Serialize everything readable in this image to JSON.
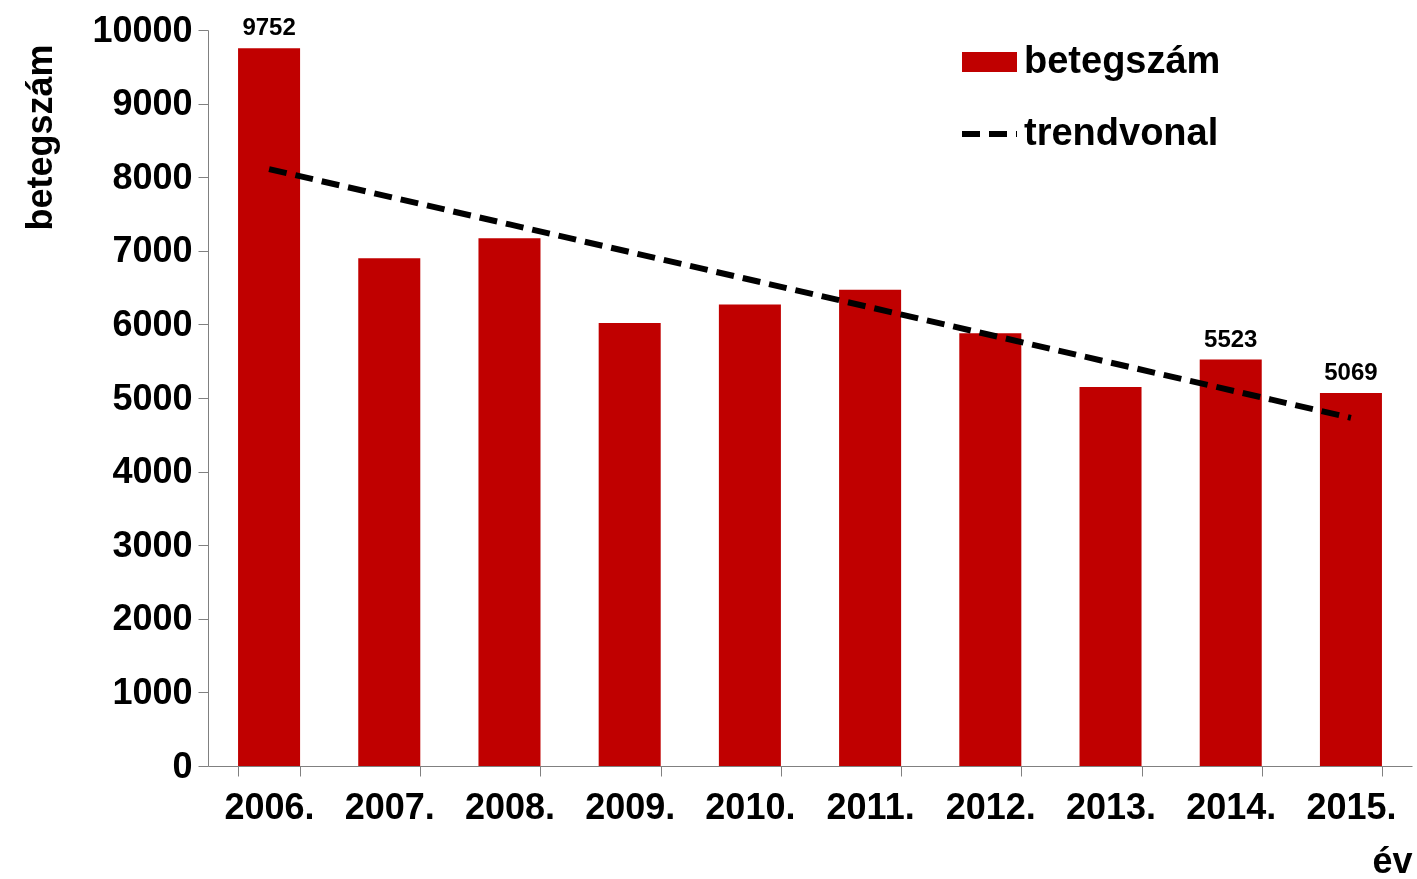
{
  "chart_data": {
    "type": "bar",
    "categories": [
      "2006.",
      "2007.",
      "2008.",
      "2009.",
      "2010.",
      "2011.",
      "2012.",
      "2013.",
      "2014.",
      "2015."
    ],
    "xlabel": "év",
    "ylabel": "betegszám",
    "ylim": [
      0,
      10000
    ],
    "yticks": [
      0,
      1000,
      2000,
      3000,
      4000,
      5000,
      6000,
      7000,
      8000,
      9000,
      10000
    ],
    "grid": false,
    "legend": "top right",
    "series": [
      {
        "name": "betegszám",
        "color": "#c00000",
        "values": [
          9752,
          6900,
          7170,
          6020,
          6270,
          6470,
          5880,
          5150,
          5523,
          5069
        ],
        "value_labels": [
          "9752",
          null,
          null,
          null,
          null,
          null,
          null,
          null,
          "5523",
          "5069"
        ]
      },
      {
        "name": "trendvonal",
        "type": "line",
        "color": "#000000",
        "line_style": "dashed",
        "x": [
          "2006.",
          "2015."
        ],
        "values": [
          8110,
          4730
        ]
      }
    ]
  }
}
